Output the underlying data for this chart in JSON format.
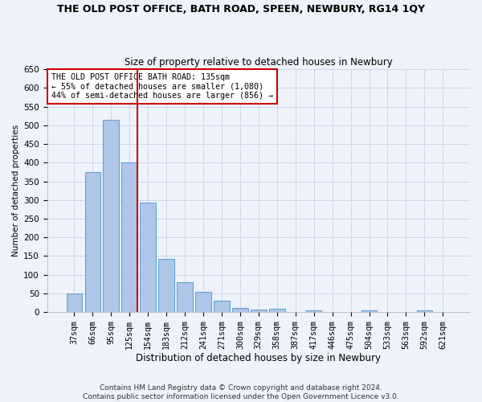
{
  "title": "THE OLD POST OFFICE, BATH ROAD, SPEEN, NEWBURY, RG14 1QY",
  "subtitle": "Size of property relative to detached houses in Newbury",
  "xlabel": "Distribution of detached houses by size in Newbury",
  "ylabel": "Number of detached properties",
  "categories": [
    "37sqm",
    "66sqm",
    "95sqm",
    "125sqm",
    "154sqm",
    "183sqm",
    "212sqm",
    "241sqm",
    "271sqm",
    "300sqm",
    "329sqm",
    "358sqm",
    "387sqm",
    "417sqm",
    "446sqm",
    "475sqm",
    "504sqm",
    "533sqm",
    "563sqm",
    "592sqm",
    "621sqm"
  ],
  "values": [
    50,
    375,
    515,
    400,
    293,
    142,
    80,
    55,
    30,
    12,
    8,
    10,
    0,
    5,
    0,
    0,
    4,
    0,
    0,
    4,
    0
  ],
  "bar_color": "#aec6e8",
  "bar_edge_color": "#5a9fd4",
  "marker_bar_index": 3,
  "marker_color": "#cc0000",
  "ylim": [
    0,
    650
  ],
  "yticks": [
    0,
    50,
    100,
    150,
    200,
    250,
    300,
    350,
    400,
    450,
    500,
    550,
    600,
    650
  ],
  "annotation_title": "THE OLD POST OFFICE BATH ROAD: 135sqm",
  "annotation_line1": "← 55% of detached houses are smaller (1,080)",
  "annotation_line2": "44% of semi-detached houses are larger (856) →",
  "footer_line1": "Contains HM Land Registry data © Crown copyright and database right 2024.",
  "footer_line2": "Contains public sector information licensed under the Open Government Licence v3.0.",
  "background_color": "#eef2fb",
  "plot_bg_color": "#eef2fb",
  "grid_color": "#c8d0e8"
}
